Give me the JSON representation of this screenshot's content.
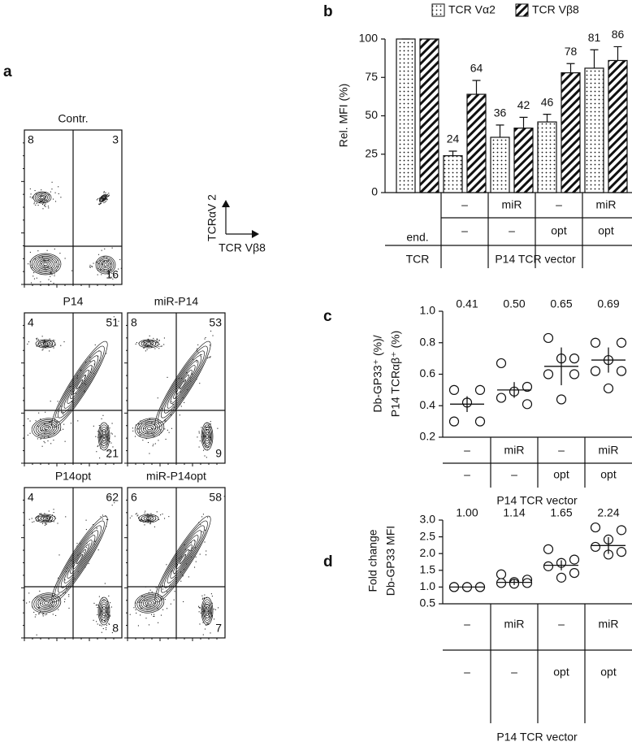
{
  "flow": {
    "panel_label": "a",
    "y_label": "TCRαV 2",
    "x_label": "TCR Vβ8",
    "plots": [
      {
        "title": "Contr.",
        "ul": 8,
        "ur": 3,
        "lr": 16
      },
      {
        "title": "P14",
        "ul": 4,
        "ur": 51,
        "lr": 21
      },
      {
        "title": "miR-P14",
        "ul": 8,
        "ur": 53,
        "lr": 9
      },
      {
        "title": "P14opt",
        "ul": 4,
        "ur": 62,
        "lr": 8
      },
      {
        "title": "miR-P14opt",
        "ul": 6,
        "ur": 58,
        "lr": 7
      }
    ]
  },
  "chart_data": [
    {
      "type": "bar",
      "panel_label": "b",
      "y_label": "Rel. MFI (%)",
      "categories": [
        null,
        "–",
        "miR",
        "–",
        "miR"
      ],
      "categories2": [
        null,
        "–",
        "–",
        "opt",
        "opt"
      ],
      "x_groups": [
        [
          "end.",
          "TCR"
        ],
        [
          "P14 TCR vector"
        ]
      ],
      "ylim": [
        0,
        100
      ],
      "yticks": [
        0,
        25,
        50,
        75,
        100
      ],
      "legend": "top",
      "series": [
        {
          "name": "TCR Vα2",
          "color": "#ffffff",
          "pattern": "dots",
          "values": [
            100,
            24,
            36,
            46,
            81
          ],
          "errors": [
            0,
            3,
            8,
            5,
            12
          ],
          "value_labels": [
            null,
            "24",
            "36",
            "46",
            "81"
          ]
        },
        {
          "name": "TCR Vβ8",
          "color": "#ffffff",
          "pattern": "hatch",
          "values": [
            100,
            64,
            42,
            78,
            86
          ],
          "errors": [
            0,
            9,
            7,
            6,
            9
          ],
          "value_labels": [
            null,
            "64",
            "42",
            "78",
            "86"
          ]
        }
      ]
    },
    {
      "type": "dot",
      "panel_label": "c",
      "y_label": [
        "Db-GP33⁺ (%)/",
        "P14 TCRαβ⁺ (%)"
      ],
      "categories": [
        "–",
        "miR",
        "–",
        "miR"
      ],
      "categories2": [
        "–",
        "–",
        "opt",
        "opt"
      ],
      "x_label": "P14 TCR vector",
      "ylim": [
        0.2,
        1
      ],
      "yticks": [
        0.2,
        0.4,
        0.6,
        0.8,
        {
          "value": 1,
          "label": "1.0"
        }
      ],
      "values": [
        0.41,
        0.5,
        0.65,
        0.69
      ],
      "value_labels": [
        "0.41",
        "0.50",
        "0.65",
        "0.69"
      ],
      "errors": [
        0.05,
        0.05,
        0.12,
        0.08
      ],
      "points": [
        [
          0.5,
          0.5,
          0.42,
          0.3,
          0.3
        ],
        [
          0.67,
          0.52,
          0.49,
          0.45,
          0.41
        ],
        [
          0.83,
          0.7,
          0.7,
          0.6,
          0.6,
          0.44
        ],
        [
          0.8,
          0.8,
          0.69,
          0.62,
          0.62,
          0.51
        ]
      ]
    },
    {
      "type": "dot",
      "panel_label": "d",
      "y_label": [
        "Fold change",
        "Db-GP33 MFI"
      ],
      "categories": [
        "–",
        "miR",
        "–",
        "miR"
      ],
      "categories2": [
        "–",
        "–",
        "opt",
        "opt"
      ],
      "x_label": "P14 TCR vector",
      "ylim": [
        0.5,
        3
      ],
      "yticks": [
        0.5,
        {
          "value": 1,
          "label": "1.0"
        },
        1.5,
        {
          "value": 2,
          "label": "2.0"
        },
        2.5,
        {
          "value": 3,
          "label": "3.0"
        }
      ],
      "values": [
        1,
        1.14,
        1.65,
        2.24
      ],
      "value_labels": [
        "1.00",
        "1.14",
        "1.65",
        "2.24"
      ],
      "errors": [
        0.01,
        0.08,
        0.15,
        0.25
      ],
      "points": [
        [
          1,
          1,
          1,
          1,
          1,
          1
        ],
        [
          1.38,
          1.22,
          1.15,
          1.12,
          1.12,
          1.1
        ],
        [
          2.13,
          1.82,
          1.72,
          1.62,
          1.42,
          1.28
        ],
        [
          2.78,
          2.7,
          2.42,
          2.2,
          2.05,
          1.97
        ]
      ]
    }
  ]
}
